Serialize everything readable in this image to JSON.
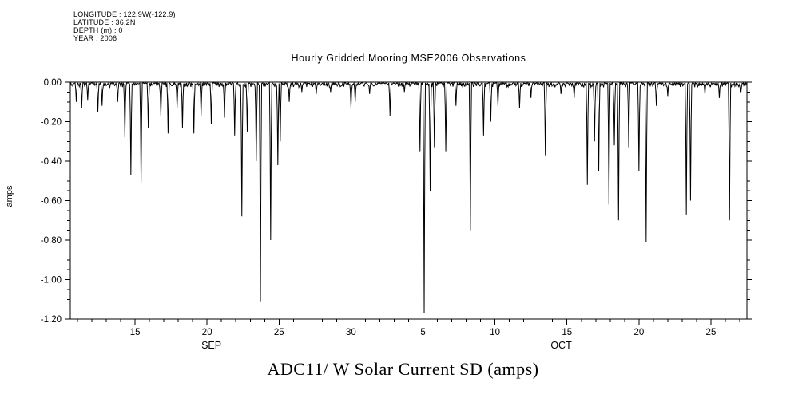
{
  "header": {
    "meta_lines": [
      "LONGITUDE : 122.9W(-122.9)",
      "LATITUDE : 36.2N",
      "DEPTH (m) : 0",
      "YEAR : 2006"
    ]
  },
  "title": "Hourly Gridded Mooring MSE2006 Observations",
  "caption": "ADC11/ W Solar Current SD (amps)",
  "colors": {
    "foreground": "#000000",
    "background": "#ffffff"
  },
  "chart_data": {
    "type": "line",
    "title": "Hourly Gridded Mooring MSE2006 Observations",
    "xlabel": "",
    "ylabel": "amps",
    "ylim": [
      -1.2,
      0.0
    ],
    "ytick_step": 0.2,
    "ytick_labels": [
      "0.00",
      "-0.20",
      "-0.40",
      "-0.60",
      "-0.80",
      "-1.00",
      "-1.20"
    ],
    "ytick_values": [
      0.0,
      -0.2,
      -0.4,
      -0.6,
      -0.8,
      -1.0,
      -1.2
    ],
    "y_minor_step": 0.05,
    "x_domain_days": [
      10.5,
      57.5
    ],
    "day_convention": "day 1-30 = September 2006 date; day 30+d = October d, 2006; sampling is hourly",
    "xticks": [
      {
        "day": 15,
        "label": "15"
      },
      {
        "day": 20,
        "label": "20"
      },
      {
        "day": 25,
        "label": "25"
      },
      {
        "day": 30,
        "label": "30"
      },
      {
        "day": 35,
        "label": "5"
      },
      {
        "day": 40,
        "label": "10"
      },
      {
        "day": 45,
        "label": "15"
      },
      {
        "day": 50,
        "label": "20"
      },
      {
        "day": 55,
        "label": "25"
      }
    ],
    "x_minor_step_days": 1,
    "month_labels": [
      {
        "day": 20.3,
        "label": "SEP"
      },
      {
        "day": 44.6,
        "label": "OCT"
      }
    ],
    "grid": false,
    "legend": "none",
    "baseline_amps": -0.01,
    "spikes_format": "[day, minimum_amps] — narrow daily downward spikes from the near-zero baseline",
    "spikes": [
      [
        10.9,
        -0.1
      ],
      [
        11.3,
        -0.13
      ],
      [
        11.7,
        -0.09
      ],
      [
        12.4,
        -0.15
      ],
      [
        12.7,
        -0.12
      ],
      [
        13.8,
        -0.1
      ],
      [
        14.3,
        -0.28
      ],
      [
        14.7,
        -0.47
      ],
      [
        15.4,
        -0.51
      ],
      [
        15.9,
        -0.23
      ],
      [
        16.8,
        -0.17
      ],
      [
        17.3,
        -0.26
      ],
      [
        17.9,
        -0.13
      ],
      [
        18.3,
        -0.23
      ],
      [
        19.1,
        -0.26
      ],
      [
        19.6,
        -0.17
      ],
      [
        20.3,
        -0.21
      ],
      [
        21.2,
        -0.18
      ],
      [
        21.9,
        -0.27
      ],
      [
        22.4,
        -0.68
      ],
      [
        22.8,
        -0.25
      ],
      [
        23.4,
        -0.4
      ],
      [
        23.7,
        -1.11
      ],
      [
        24.4,
        -0.8
      ],
      [
        24.9,
        -0.42
      ],
      [
        25.1,
        -0.3
      ],
      [
        25.7,
        -0.1
      ],
      [
        26.6,
        -0.05
      ],
      [
        27.6,
        -0.06
      ],
      [
        28.6,
        -0.05
      ],
      [
        30.0,
        -0.13
      ],
      [
        30.3,
        -0.1
      ],
      [
        31.3,
        -0.06
      ],
      [
        32.7,
        -0.17
      ],
      [
        33.7,
        -0.05
      ],
      [
        34.8,
        -0.35
      ],
      [
        35.1,
        -1.17
      ],
      [
        35.5,
        -0.55
      ],
      [
        35.8,
        -0.33
      ],
      [
        36.6,
        -0.35
      ],
      [
        37.3,
        -0.12
      ],
      [
        38.3,
        -0.75
      ],
      [
        39.2,
        -0.27
      ],
      [
        39.7,
        -0.2
      ],
      [
        40.2,
        -0.12
      ],
      [
        41.7,
        -0.13
      ],
      [
        42.5,
        -0.08
      ],
      [
        43.5,
        -0.37
      ],
      [
        44.6,
        -0.06
      ],
      [
        45.5,
        -0.08
      ],
      [
        46.4,
        -0.52
      ],
      [
        46.9,
        -0.3
      ],
      [
        47.2,
        -0.45
      ],
      [
        47.9,
        -0.62
      ],
      [
        48.3,
        -0.32
      ],
      [
        48.6,
        -0.7
      ],
      [
        49.3,
        -0.33
      ],
      [
        50.0,
        -0.45
      ],
      [
        50.5,
        -0.81
      ],
      [
        51.2,
        -0.12
      ],
      [
        52.0,
        -0.07
      ],
      [
        53.3,
        -0.67
      ],
      [
        53.6,
        -0.6
      ],
      [
        54.6,
        -0.06
      ],
      [
        55.6,
        -0.08
      ],
      [
        56.3,
        -0.7
      ],
      [
        57.1,
        -0.05
      ]
    ]
  }
}
